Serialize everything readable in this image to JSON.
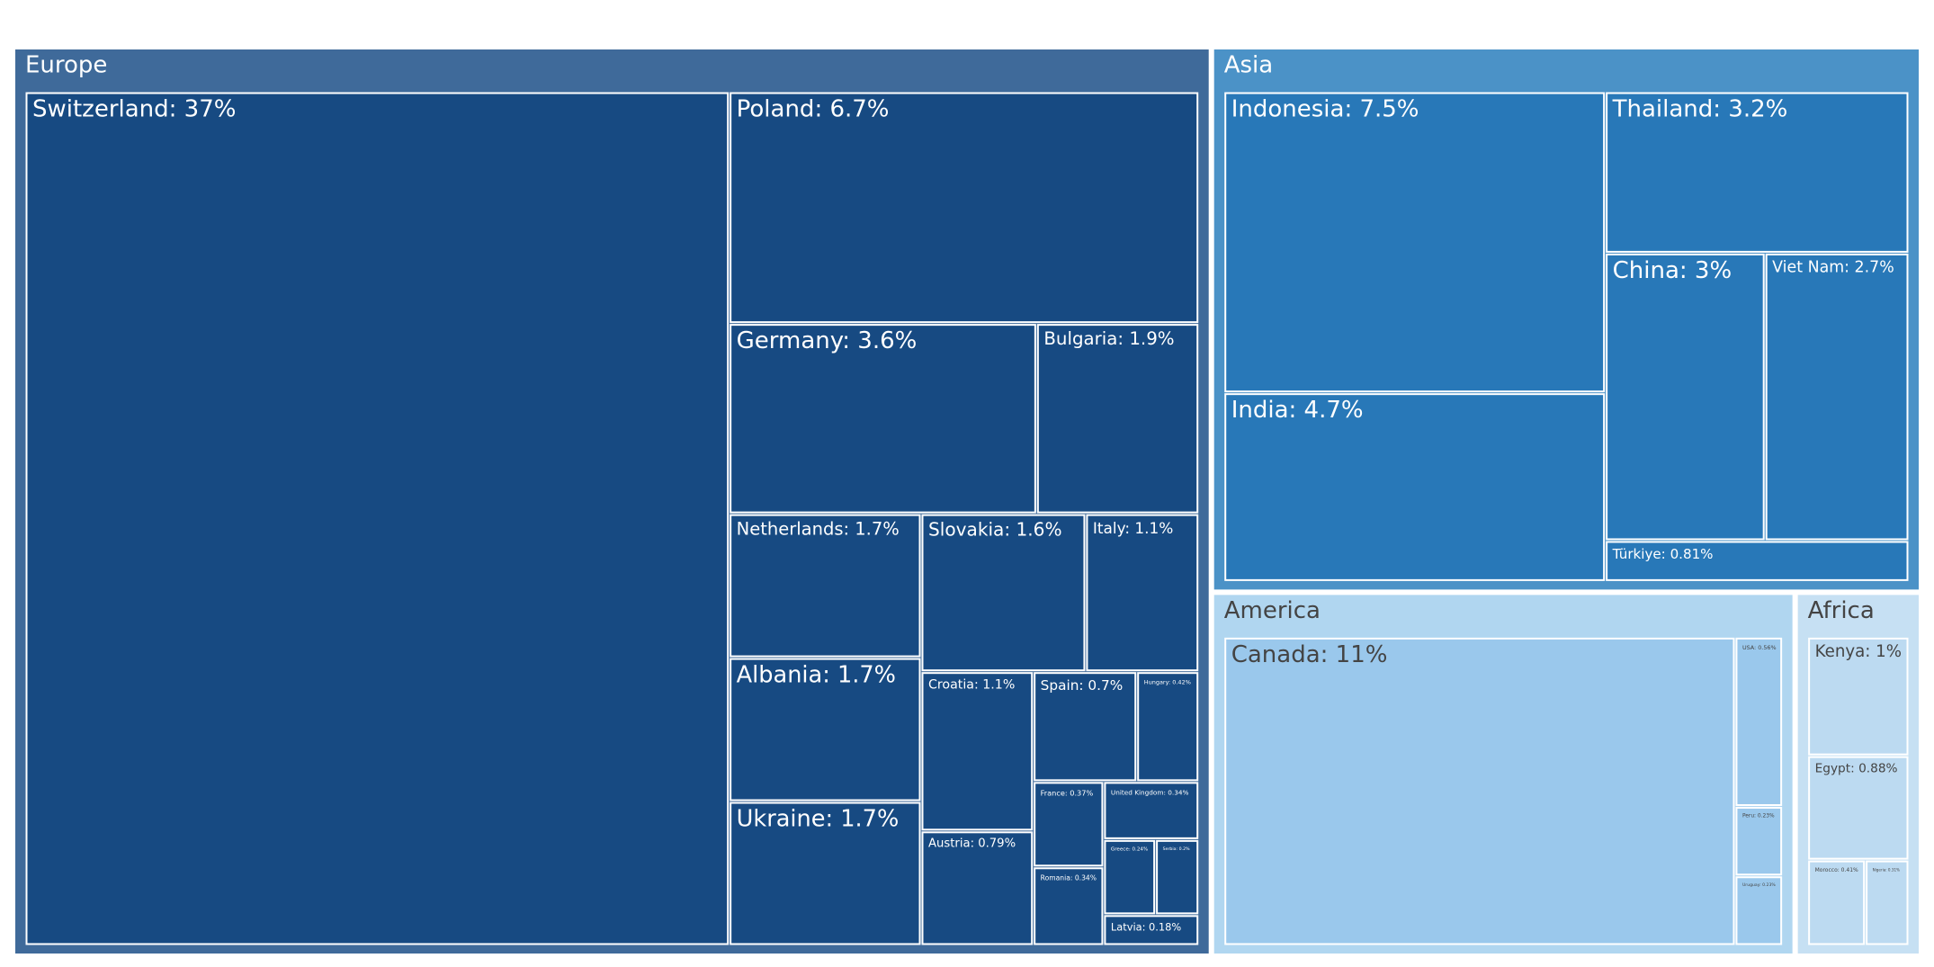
{
  "chart_data": {
    "type": "treemap",
    "series": [
      {
        "name": "Europe",
        "group_color": "#3f6a9a",
        "color": "#174a82",
        "label_color": "#ffffff",
        "values": [
          37,
          6.7,
          3.6,
          1.9,
          1.7,
          1.7,
          1.7,
          1.6,
          1.1,
          1.1,
          0.79,
          0.7,
          0.42,
          0.37,
          0.34,
          0.34,
          0.24,
          0.2,
          0.18
        ],
        "value_labels": [
          "Switzerland: 37%",
          "Poland: 6.7%",
          "Germany: 3.6%",
          "Bulgaria: 1.9%",
          "Netherlands: 1.7%",
          "Albania: 1.7%",
          "Ukraine: 1.7%",
          "Slovakia: 1.6%",
          "Italy: 1.1%",
          "Croatia: 1.1%",
          "Austria: 0.79%",
          "Spain: 0.7%",
          "Hungary: 0.42%",
          "France: 0.37%",
          "Romania: 0.34%",
          "United Kingdom: 0.34%",
          "Greece: 0.24%",
          "Serbia: 0.2%",
          "Latvia: 0.18%"
        ]
      },
      {
        "name": "Asia",
        "group_color": "#4b92c7",
        "color": "#2878b8",
        "label_color": "#ffffff",
        "values": [
          7.5,
          4.7,
          3.2,
          3,
          2.7,
          0.81
        ],
        "value_labels": [
          "Indonesia: 7.5%",
          "India: 4.7%",
          "Thailand: 3.2%",
          "China: 3%",
          "Viet Nam: 2.7%",
          "Türkiye: 0.81%"
        ]
      },
      {
        "name": "America",
        "group_color": "#b0d6f0",
        "color": "#9ac8ec",
        "label_color": "#444444",
        "values": [
          11,
          0.56,
          0.23,
          0.23
        ],
        "value_labels": [
          "Canada: 11%",
          "USA: 0.56%",
          "Peru: 0.23%",
          "Uruguay: 0.23%"
        ]
      },
      {
        "name": "Africa",
        "group_color": "#c6e0f3",
        "color": "#bcdaf1",
        "label_color": "#444444",
        "values": [
          1,
          0.88,
          0.41,
          0.31
        ],
        "value_labels": [
          "Kenya: 1%",
          "Egypt: 0.88%",
          "Morocco: 0.41%",
          "Nigeria: 0.31%"
        ]
      }
    ]
  }
}
